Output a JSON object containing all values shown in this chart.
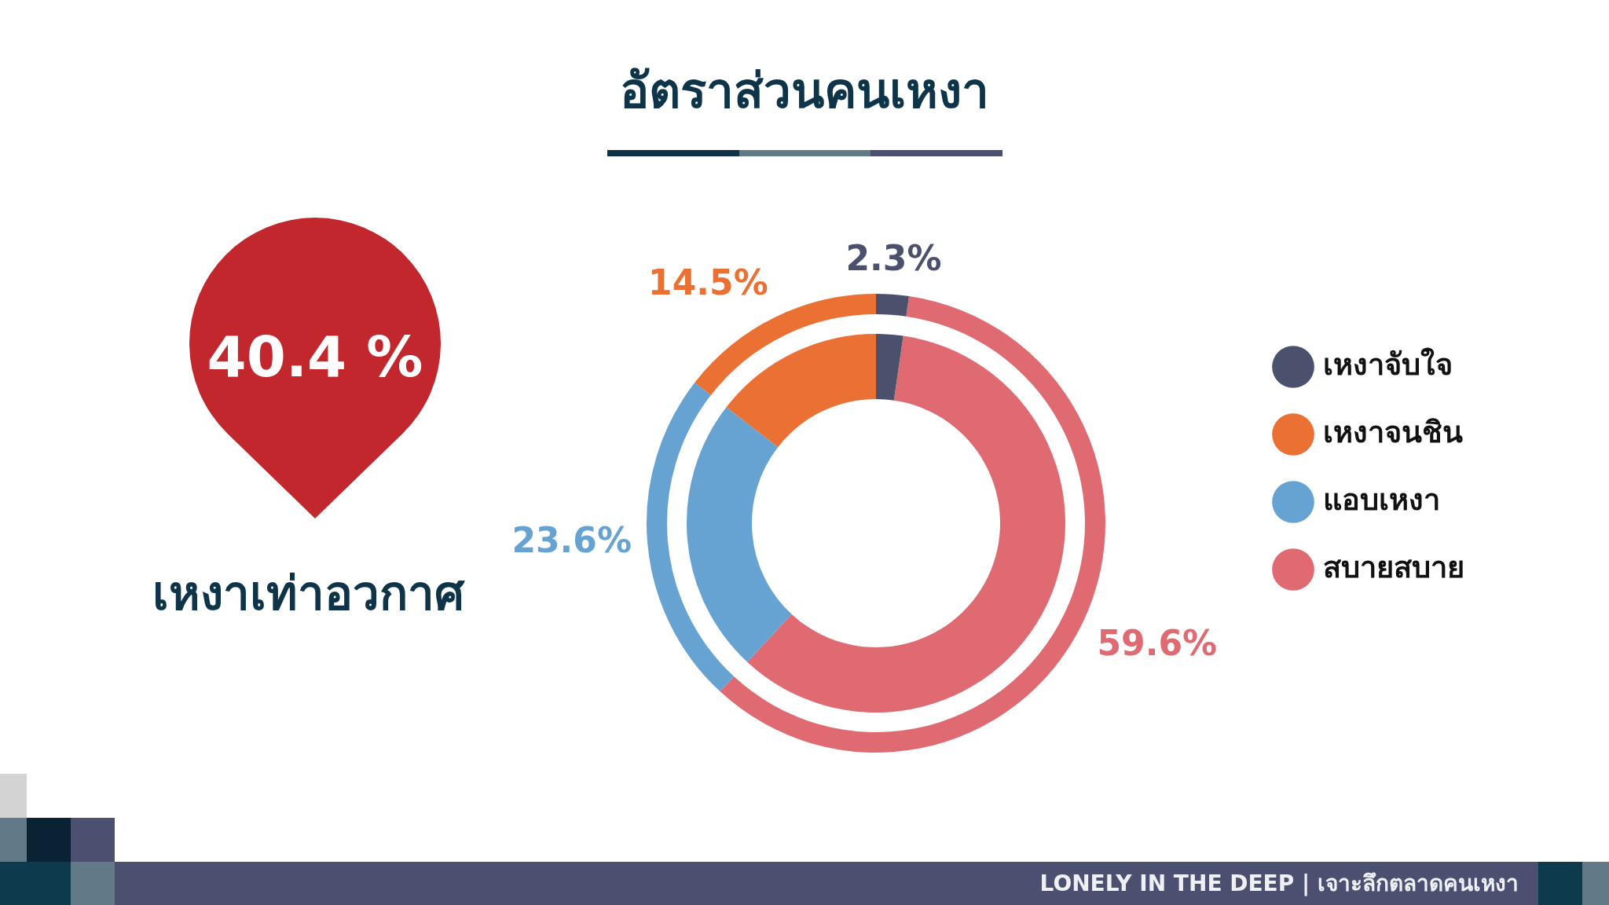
{
  "chart_data": [
    {
      "type": "other",
      "title": "เหงาเท่าอวกาศ",
      "annotations": [
        "40.4 %"
      ]
    },
    {
      "type": "donut",
      "title": "อัตราส่วนคนเหงา",
      "categories": [
        "สบายสบาย",
        "แอบเหงา",
        "เหงาจนชิน",
        "เหงาจับใจ"
      ],
      "colors": [
        "#df6a71",
        "#66a3d2",
        "#eb7034",
        "#4b506d"
      ],
      "series": [
        {
          "values": [
            59.6,
            23.6,
            14.5,
            2.3
          ],
          "value_labels": [
            "59.6%",
            "23.6%",
            "14.5%",
            "2.3%"
          ]
        },
        {
          "values": [
            59.6,
            23.6,
            14.5,
            2.3
          ]
        }
      ],
      "legend": "right",
      "annotations": [
        "LONELY IN THE DEEP | เจาะลึกตลาดคนเหงา"
      ]
    }
  ]
}
